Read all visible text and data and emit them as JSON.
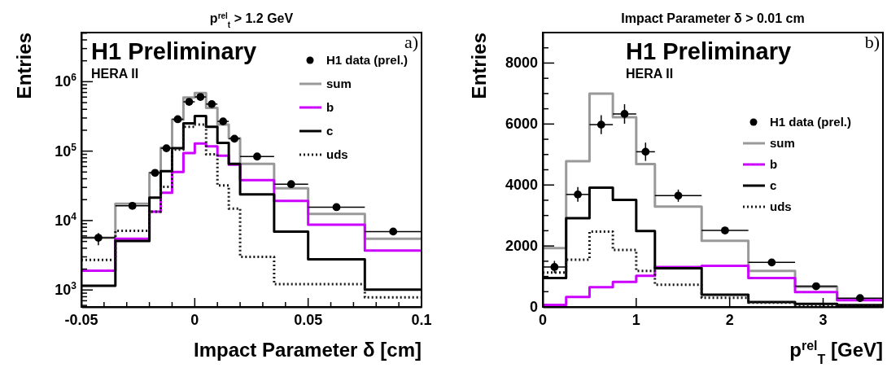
{
  "chart_data": [
    {
      "type": "histogram",
      "title": "p$^{rel}$$_{t}$ > 1.2 GeV",
      "xlabel": "Impact Parameter δ [cm]",
      "ylabel": "Entries",
      "log": "y",
      "legend": "top right",
      "annotations": [
        "H1 Preliminary",
        "HERA II",
        "a)"
      ],
      "bins": [
        -0.05,
        -0.035,
        -0.02,
        -0.015,
        -0.01,
        -0.005,
        0,
        0.005,
        0.01,
        0.015,
        0.02,
        0.035,
        0.05,
        0.075,
        0.1
      ],
      "series": [
        {
          "name": "H1 data (prel.)",
          "type": "scatter",
          "marker": "circle",
          "color": "#000000",
          "x": [
            -0.0425,
            -0.0275,
            -0.0175,
            -0.0125,
            -0.0075,
            -0.0025,
            0.0025,
            0.0075,
            0.0125,
            0.0175,
            0.0275,
            0.0425,
            0.0625,
            0.0875
          ],
          "values": [
            5650,
            16300,
            48700,
            110000,
            288000,
            513000,
            603000,
            476000,
            268000,
            151000,
            83600,
            33400,
            15600,
            6950
          ],
          "errors": [
            [
              4400,
              6600
            ],
            null,
            null,
            null,
            null,
            null,
            null,
            null,
            null,
            null,
            null,
            null,
            null,
            null
          ],
          "xerrors": [
            0.0075,
            0.0075,
            0.0025,
            0.0025,
            0.0025,
            0.0025,
            0.0025,
            0.0025,
            0.0025,
            0.0025,
            0.0075,
            0.0075,
            0.0125,
            0.0125
          ]
        },
        {
          "name": "sum",
          "color": "#999999",
          "line_style": "solid",
          "values": [
            5650,
            17500,
            48700,
            112000,
            283000,
            592000,
            689000,
            421000,
            241000,
            154000,
            65400,
            29200,
            12500,
            5460
          ]
        },
        {
          "name": "b",
          "color": "#cc00ff",
          "line_style": "solid",
          "values": [
            1890,
            5460,
            13400,
            25100,
            50100,
            94000,
            129000,
            117000,
            85700,
            64000,
            38300,
            19200,
            8700,
            3700
          ]
        },
        {
          "name": "c",
          "color": "#000000",
          "line_style": "solid",
          "values": [
            1150,
            5080,
            21400,
            51400,
            110000,
            252000,
            321000,
            224000,
            131000,
            65400,
            23800,
            6950,
            2760,
            1010
          ]
        },
        {
          "name": "uds",
          "color": "#1a1a1a",
          "line_style": "dotted",
          "values": [
            2710,
            7140,
            13400,
            30500,
            105000,
            224000,
            241000,
            89800,
            32000,
            14900,
            3000,
            1210,
            1210,
            785
          ]
        }
      ],
      "xlim": [
        -0.05,
        0.1
      ],
      "xticks": [
        -0.05,
        {
          "value": -0.04,
          "label": null
        },
        {
          "value": -0.03,
          "label": null
        },
        {
          "value": -0.02,
          "label": null
        },
        {
          "value": -0.01,
          "label": null
        },
        0,
        {
          "value": 0.01,
          "label": null
        },
        {
          "value": 0.02,
          "label": null
        },
        {
          "value": 0.03,
          "label": null
        },
        {
          "value": 0.04,
          "label": null
        },
        0.05,
        {
          "value": 0.06,
          "label": null
        },
        {
          "value": 0.07,
          "label": null
        },
        {
          "value": 0.08,
          "label": null
        },
        {
          "value": 0.09,
          "label": null
        },
        0.1
      ],
      "ylim": [
        570,
        5100000
      ],
      "yticks": [
        {
          "value": 600,
          "label": null
        },
        {
          "value": 700,
          "label": null
        },
        {
          "value": 800,
          "label": null
        },
        {
          "value": 900,
          "label": null
        },
        {
          "value": 1000,
          "label": "10$^{3}$"
        },
        {
          "value": 2000,
          "label": null
        },
        {
          "value": 3000,
          "label": null
        },
        {
          "value": 4000,
          "label": null
        },
        {
          "value": 5000,
          "label": null
        },
        {
          "value": 6000,
          "label": null
        },
        {
          "value": 7000,
          "label": null
        },
        {
          "value": 8000,
          "label": null
        },
        {
          "value": 9000,
          "label": null
        },
        {
          "value": 10000,
          "label": "10$^{4}$"
        },
        {
          "value": 20000,
          "label": null
        },
        {
          "value": 30000,
          "label": null
        },
        {
          "value": 40000,
          "label": null
        },
        {
          "value": 50000,
          "label": null
        },
        {
          "value": 60000,
          "label": null
        },
        {
          "value": 70000,
          "label": null
        },
        {
          "value": 80000,
          "label": null
        },
        {
          "value": 90000,
          "label": null
        },
        {
          "value": 100000,
          "label": "10$^{5}$"
        },
        {
          "value": 200000,
          "label": null
        },
        {
          "value": 300000,
          "label": null
        },
        {
          "value": 400000,
          "label": null
        },
        {
          "value": 500000,
          "label": null
        },
        {
          "value": 600000,
          "label": null
        },
        {
          "value": 700000,
          "label": null
        },
        {
          "value": 800000,
          "label": null
        },
        {
          "value": 900000,
          "label": null
        },
        {
          "value": 1000000,
          "label": "10$^{6}$"
        },
        {
          "value": 2000000,
          "label": null
        },
        {
          "value": 3000000,
          "label": null
        },
        {
          "value": 4000000,
          "label": null
        },
        {
          "value": 5000000,
          "label": null
        }
      ]
    },
    {
      "type": "histogram",
      "title": "Impact Parameter δ > 0.01 cm",
      "xlabel": "p$^{rel}$$_{T}$ [GeV]",
      "ylabel": "Entries",
      "legend": "right",
      "annotations": [
        "H1 Preliminary",
        "HERA II",
        "b)"
      ],
      "bins": [
        0,
        0.25,
        0.5,
        0.75,
        1,
        1.2,
        1.7,
        2.2,
        2.7,
        3.15,
        3.64
      ],
      "series": [
        {
          "name": "H1 data (prel.)",
          "type": "scatter",
          "marker": "circle",
          "color": "#000000",
          "x": [
            0.125,
            0.375,
            0.625,
            0.875,
            1.1,
            1.45,
            1.95,
            2.45,
            2.925,
            3.395
          ],
          "values": [
            1310,
            3690,
            5980,
            6330,
            5090,
            3650,
            2510,
            1460,
            680,
            290
          ],
          "errors": [
            200,
            240,
            310,
            320,
            300,
            200,
            null,
            null,
            null,
            null
          ],
          "xerrors": [
            0.125,
            0.125,
            0.125,
            0.125,
            0.1,
            0.25,
            0.25,
            0.25,
            0.225,
            0.245
          ]
        },
        {
          "name": "sum",
          "color": "#999999",
          "line_style": "solid",
          "values": [
            1930,
            4780,
            7000,
            6220,
            4690,
            3290,
            2170,
            1180,
            660,
            250
          ]
        },
        {
          "name": "b",
          "color": "#cc00ff",
          "line_style": "solid",
          "values": [
            70,
            330,
            650,
            820,
            1020,
            1310,
            1350,
            950,
            490,
            220
          ]
        },
        {
          "name": "c",
          "color": "#000000",
          "line_style": "solid",
          "values": [
            950,
            2910,
            3910,
            3510,
            2490,
            1270,
            400,
            160,
            100,
            60
          ]
        },
        {
          "name": "uds",
          "color": "#1a1a1a",
          "line_style": "dotted",
          "values": [
            1130,
            1550,
            2470,
            1870,
            1180,
            730,
            300,
            140,
            60,
            30
          ]
        }
      ],
      "xlim": [
        0,
        3.64
      ],
      "xticks": [
        0,
        1,
        2,
        3
      ],
      "ylim": [
        0,
        9000
      ],
      "yticks": [
        0,
        {
          "value": 500,
          "label": null
        },
        {
          "value": 1000,
          "label": null
        },
        {
          "value": 1500,
          "label": null
        },
        2000,
        {
          "value": 2500,
          "label": null
        },
        {
          "value": 3000,
          "label": null
        },
        {
          "value": 3500,
          "label": null
        },
        4000,
        {
          "value": 4500,
          "label": null
        },
        {
          "value": 5000,
          "label": null
        },
        {
          "value": 5500,
          "label": null
        },
        6000,
        {
          "value": 6500,
          "label": null
        },
        {
          "value": 7000,
          "label": null
        },
        {
          "value": 7500,
          "label": null
        },
        8000,
        {
          "value": 8500,
          "label": null
        }
      ]
    }
  ]
}
